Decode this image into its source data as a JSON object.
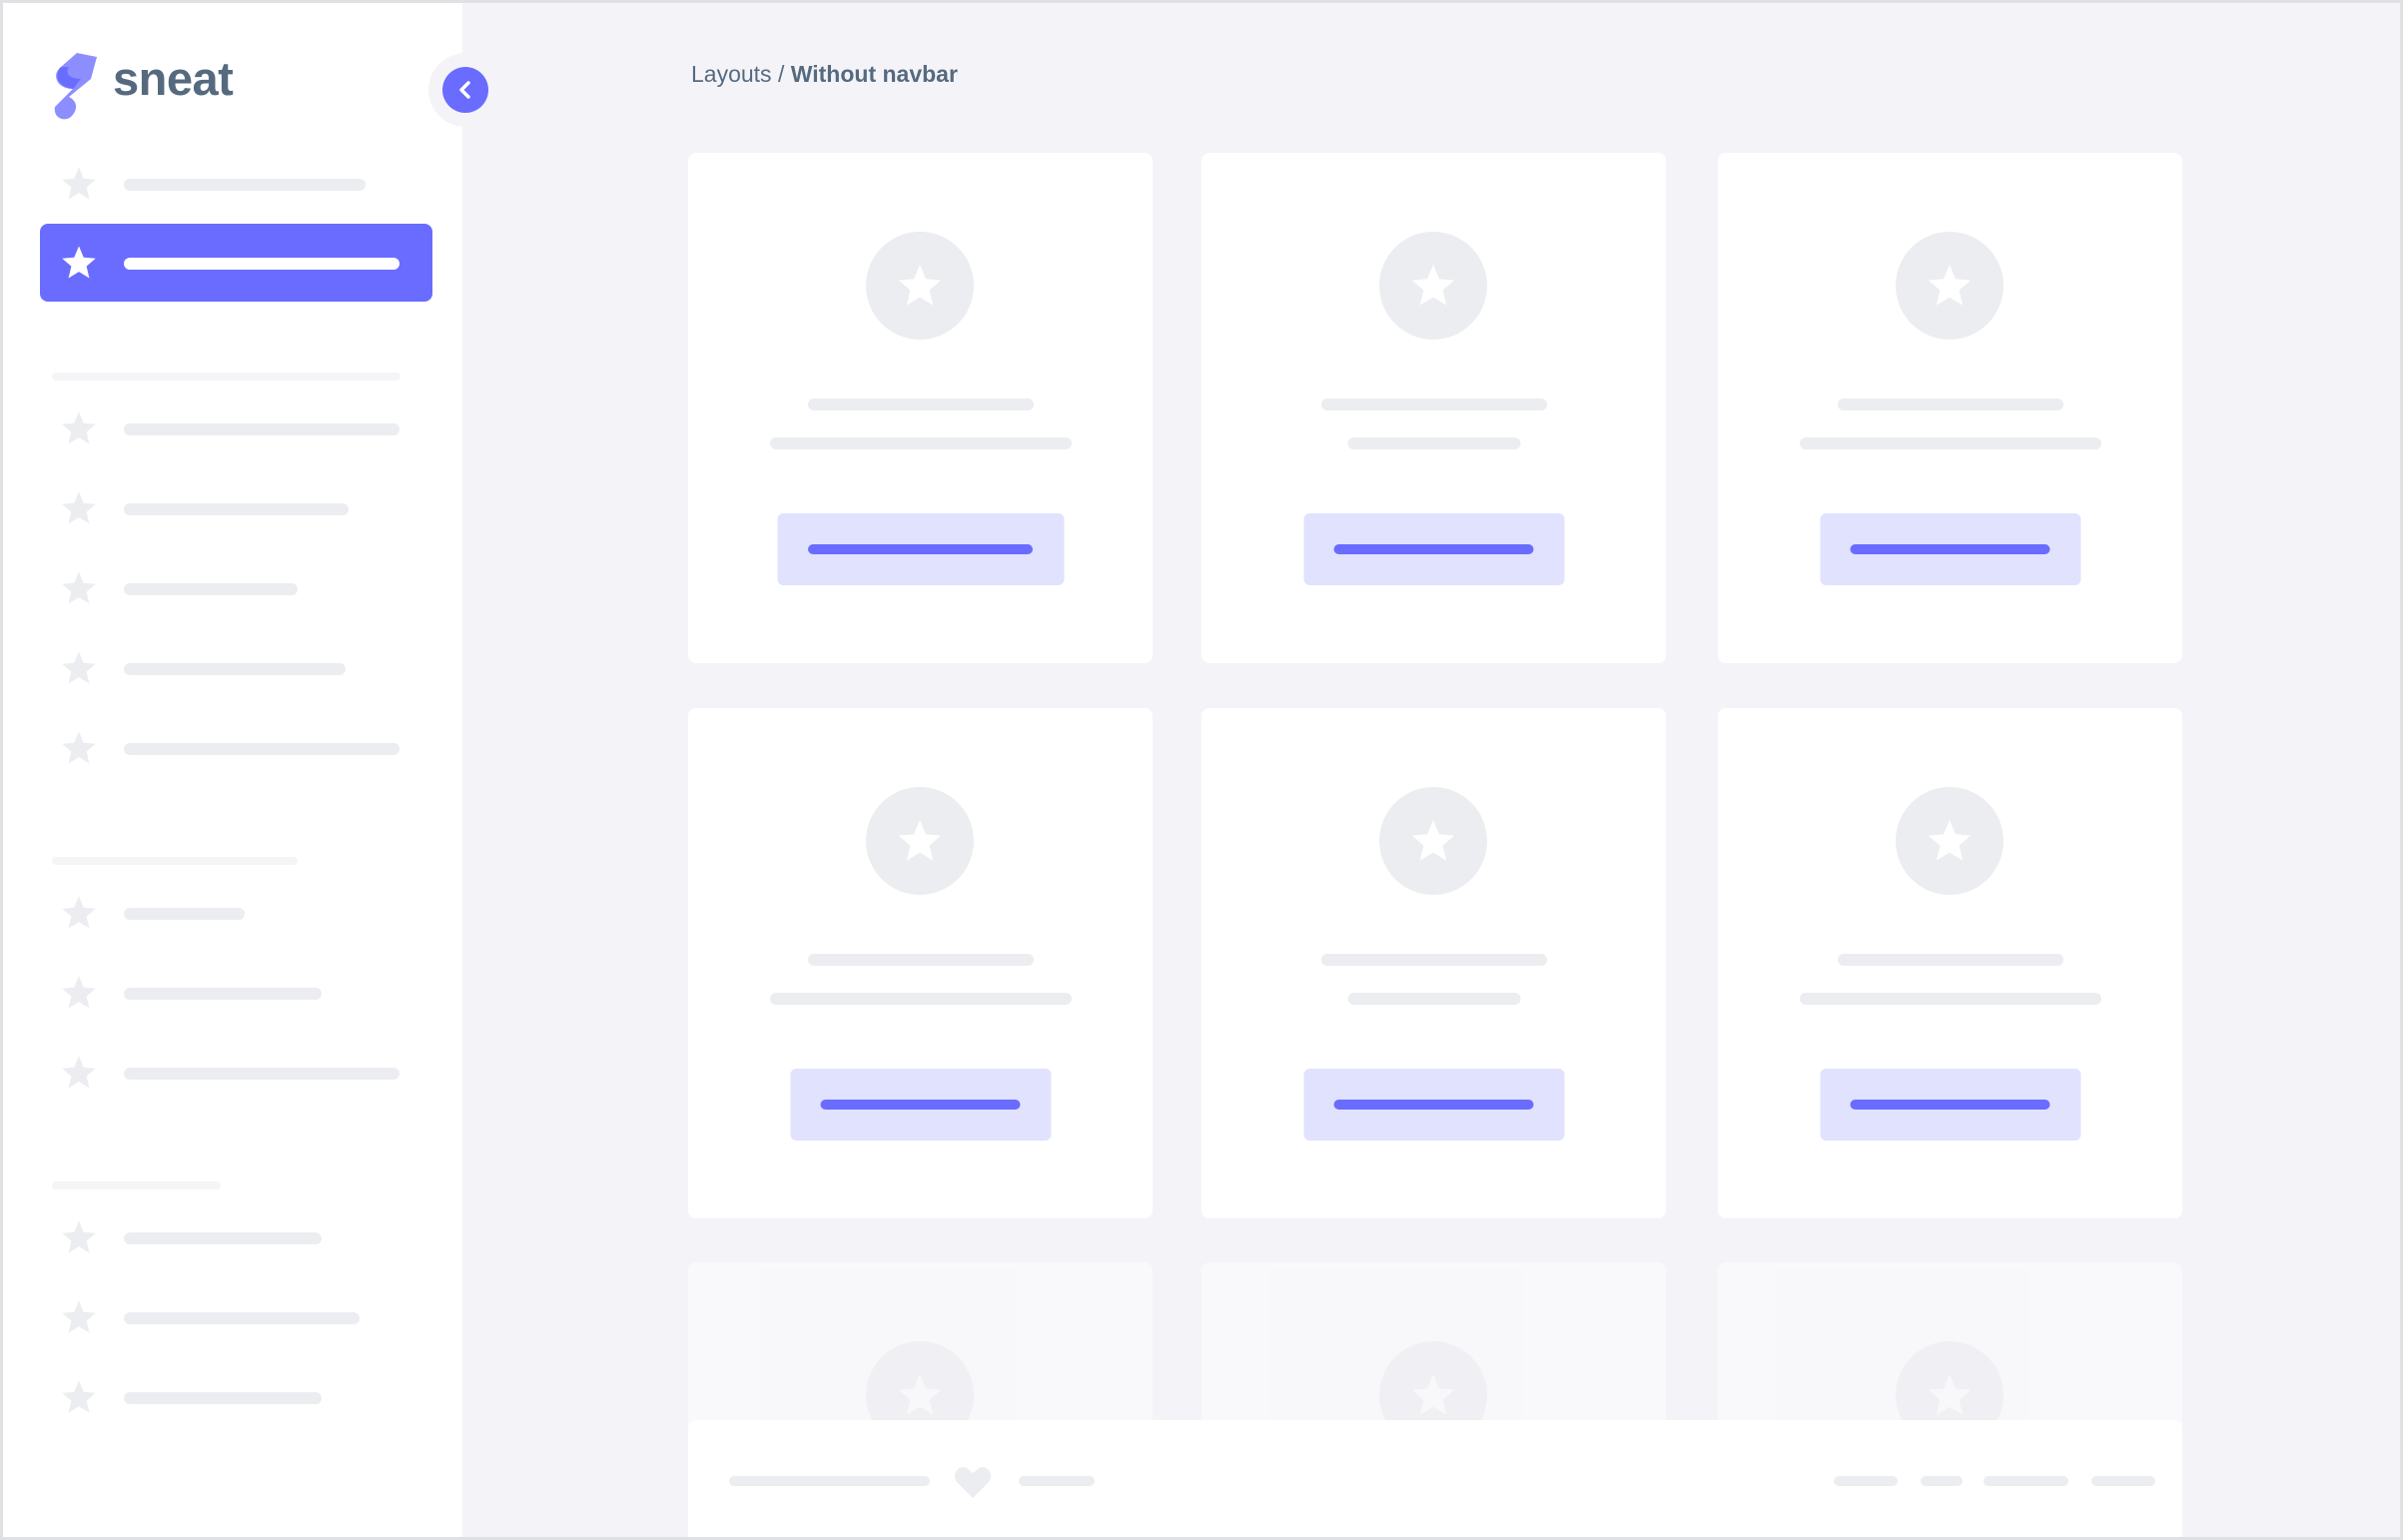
{
  "brand": {
    "name": "sneat",
    "logo_color": "#696cff"
  },
  "sidebar": {
    "toggle_icon": "chevron-left-icon",
    "active_index": 1
  },
  "breadcrumb": {
    "parent": "Layouts",
    "separator": " / ",
    "current": "Without navbar"
  },
  "colors": {
    "primary": "#696cff",
    "text": "#566a7f",
    "background": "#f4f4f8",
    "skeleton": "#ecedf0",
    "button_bg": "#e1e2fe"
  },
  "footer": {
    "icon": "heart-icon"
  }
}
